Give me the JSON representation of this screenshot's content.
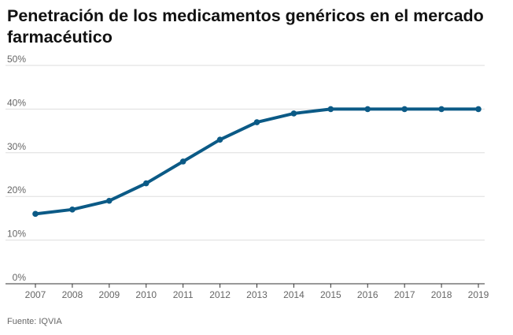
{
  "title": "Penetración de los medicamentos genéricos en el mercado farmacéutico",
  "source": "Fuente: IQVIA",
  "colors": {
    "line": "#0b5a86",
    "grid": "#dddddd",
    "axis": "#333333"
  },
  "chart_data": {
    "type": "line",
    "title": "Penetración de los medicamentos genéricos en el mercado farmacéutico",
    "xlabel": "",
    "ylabel": "",
    "x": [
      "2007",
      "2008",
      "2009",
      "2010",
      "2011",
      "2012",
      "2013",
      "2014",
      "2015",
      "2016",
      "2017",
      "2018",
      "2019"
    ],
    "series": [
      {
        "values": [
          16,
          17,
          19,
          23,
          28,
          33,
          37,
          39,
          40,
          40,
          40,
          40,
          40
        ]
      }
    ],
    "ylim": [
      0,
      50
    ],
    "yticks": [
      0,
      10,
      20,
      30,
      40,
      50
    ],
    "ytick_labels": [
      "0%",
      "10%",
      "20%",
      "30%",
      "40%",
      "50%"
    ],
    "grid": "horizontal",
    "legend": "none"
  }
}
